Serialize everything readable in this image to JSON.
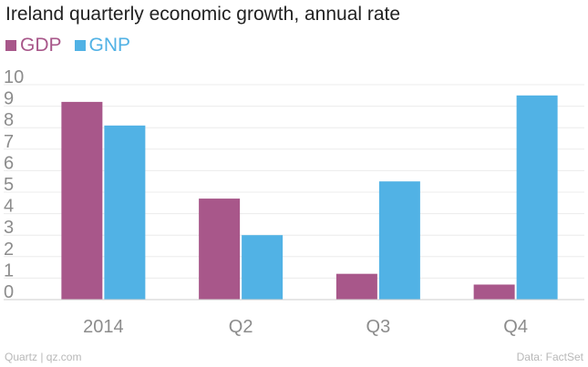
{
  "chart_data": {
    "type": "bar",
    "title": "Ireland quarterly economic growth, annual rate",
    "categories": [
      "2014",
      "Q2",
      "Q3",
      "Q4"
    ],
    "series": [
      {
        "name": "GDP",
        "color": "#a8578a",
        "values": [
          9.2,
          4.7,
          1.2,
          0.7
        ]
      },
      {
        "name": "GNP",
        "color": "#51b2e5",
        "values": [
          8.1,
          3.0,
          5.5,
          9.5
        ]
      }
    ],
    "xlabel": "",
    "ylabel": "",
    "ylim": [
      0,
      10
    ],
    "yticks": [
      "0",
      "1",
      "2",
      "3",
      "4",
      "5",
      "6",
      "7",
      "8",
      "9",
      "10"
    ],
    "grid": true,
    "legend": "top-left"
  },
  "footer": {
    "source_left": "Quartz | qz.com",
    "source_right": "Data: FactSet"
  }
}
